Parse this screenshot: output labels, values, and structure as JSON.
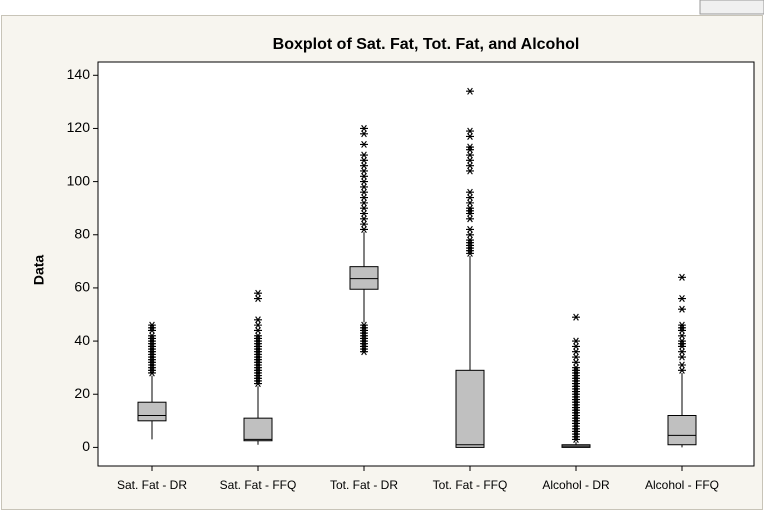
{
  "chart_data": {
    "type": "box",
    "title": "Boxplot of Sat. Fat, Tot. Fat, and Alcohol",
    "y_label": "Data",
    "categories": [
      "Sat. Fat - DR",
      "Sat. Fat - FFQ",
      "Tot. Fat - DR",
      "Tot. Fat - FFQ",
      "Alcohol - DR",
      "Alcohol - FFQ"
    ],
    "boxes": [
      {
        "whislo": 3,
        "q1": 10,
        "med": 12,
        "q3": 17,
        "whishi": 27,
        "fliers": [
          28,
          29,
          30,
          31,
          32,
          33,
          34,
          35,
          36,
          37,
          38,
          39,
          40,
          41,
          42,
          44,
          45,
          46
        ]
      },
      {
        "whislo": 1,
        "q1": 2.5,
        "med": 3,
        "q3": 11,
        "whishi": 23,
        "fliers": [
          24,
          25,
          26,
          27,
          28,
          29,
          30,
          31,
          32,
          33,
          34,
          35,
          36,
          37,
          38,
          39,
          40,
          41,
          42,
          44,
          46,
          48,
          56,
          58
        ]
      },
      {
        "whislo": 47,
        "q1": 59.5,
        "med": 63.5,
        "q3": 68,
        "whishi": 81,
        "fliers": [
          36,
          37,
          38,
          39,
          40,
          41,
          42,
          43,
          44,
          45,
          46,
          82,
          84,
          86,
          88,
          90,
          92,
          94,
          96,
          98,
          100,
          102,
          104,
          106,
          108,
          110,
          114,
          118,
          120
        ]
      },
      {
        "whislo": 0,
        "q1": 0,
        "med": 1,
        "q3": 29,
        "whishi": 72,
        "fliers": [
          73,
          74,
          75,
          76,
          77,
          78,
          80,
          82,
          86,
          88,
          89,
          90,
          92,
          94,
          96,
          104,
          106,
          108,
          110,
          112,
          113,
          117,
          119,
          134
        ]
      },
      {
        "whislo": 0,
        "q1": 0,
        "med": 0.5,
        "q3": 1,
        "whishi": 2,
        "fliers": [
          3,
          4,
          5,
          6,
          7,
          8,
          9,
          10,
          11,
          12,
          13,
          14,
          15,
          16,
          17,
          18,
          19,
          20,
          21,
          22,
          23,
          24,
          25,
          26,
          27,
          28,
          29,
          30,
          32,
          34,
          36,
          38,
          40,
          49
        ]
      },
      {
        "whislo": 0,
        "q1": 1,
        "med": 4.5,
        "q3": 12,
        "whishi": 28,
        "fliers": [
          29,
          31,
          34,
          36,
          38,
          39,
          40,
          42,
          44,
          45,
          46,
          52,
          56,
          64
        ]
      }
    ],
    "box_color": "#c0c0c0",
    "ylim": [
      -7,
      145
    ],
    "yticks": [
      0,
      20,
      40,
      60,
      80,
      100,
      120,
      140
    ]
  }
}
